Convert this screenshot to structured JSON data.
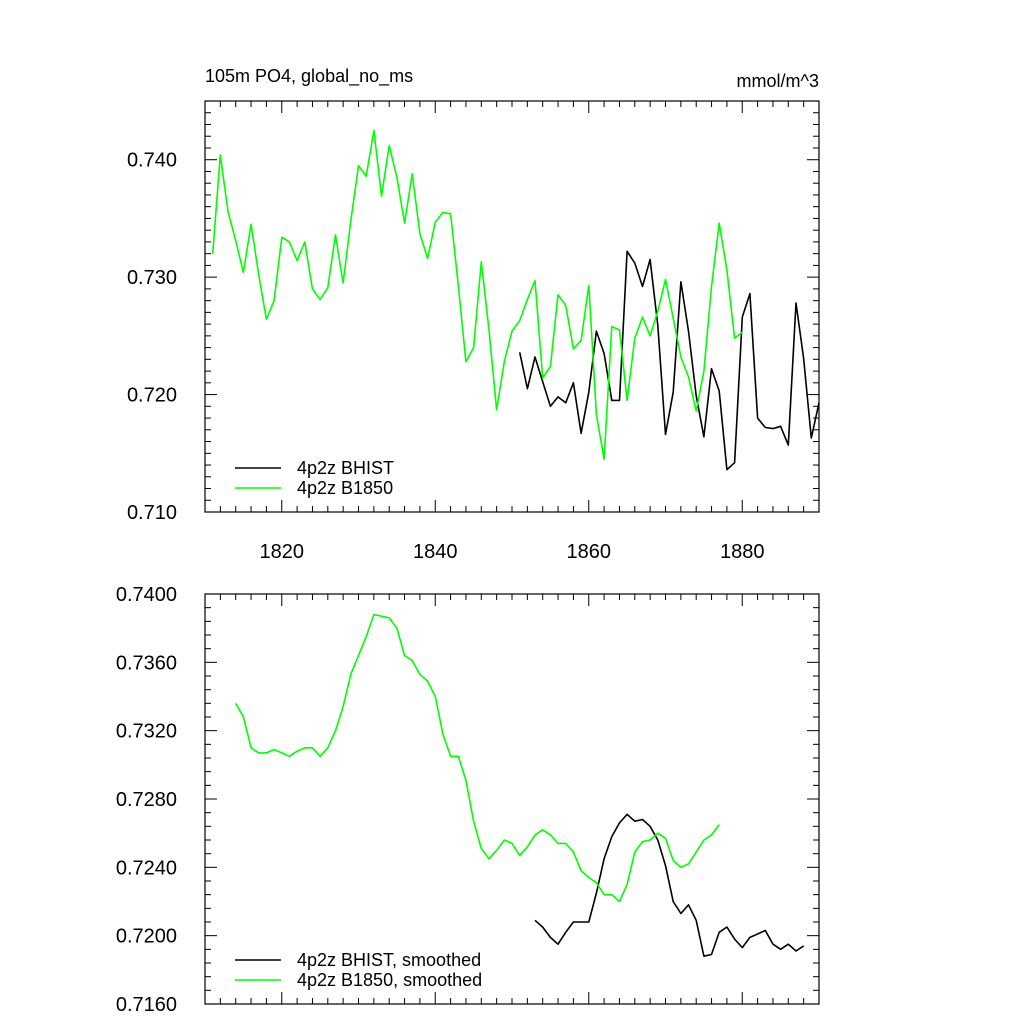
{
  "chart_data": [
    {
      "type": "line",
      "title": "105m PO4, global_no_ms",
      "units_label": "mmol/m^3",
      "xlim": [
        1810,
        1890
      ],
      "ylim": [
        0.71,
        0.745
      ],
      "x_ticks": [
        1820,
        1840,
        1860,
        1880
      ],
      "x_tick_labels": [
        "1820",
        "1840",
        "1860",
        "1880"
      ],
      "y_ticks": [
        0.71,
        0.72,
        0.73,
        0.74
      ],
      "y_tick_labels": [
        "0.710",
        "0.720",
        "0.730",
        "0.740"
      ],
      "legend_position": "bottom-left",
      "series": [
        {
          "name": "4p2z BHIST",
          "color": "#000000",
          "x": [
            1851,
            1852,
            1853,
            1854,
            1855,
            1856,
            1857,
            1858,
            1859,
            1860,
            1861,
            1862,
            1863,
            1864,
            1865,
            1866,
            1867,
            1868,
            1869,
            1870,
            1871,
            1872,
            1873,
            1874,
            1875,
            1876,
            1877,
            1878,
            1879,
            1880,
            1881,
            1882,
            1883,
            1884,
            1885,
            1886,
            1887,
            1888,
            1889,
            1890
          ],
          "values": [
            0.7236,
            0.7205,
            0.7232,
            0.7211,
            0.719,
            0.7198,
            0.7193,
            0.721,
            0.7167,
            0.7202,
            0.7254,
            0.7235,
            0.7195,
            0.7195,
            0.7322,
            0.7312,
            0.7292,
            0.7315,
            0.7259,
            0.7166,
            0.7202,
            0.7296,
            0.7254,
            0.7199,
            0.7164,
            0.7222,
            0.7203,
            0.7136,
            0.7142,
            0.7266,
            0.7286,
            0.718,
            0.7172,
            0.7171,
            0.7173,
            0.7157,
            0.7278,
            0.7231,
            0.7163,
            0.7193
          ]
        },
        {
          "name": "4p2z B1850",
          "color": "#00ff00",
          "x": [
            1811,
            1812,
            1813,
            1814,
            1815,
            1816,
            1817,
            1818,
            1819,
            1820,
            1821,
            1822,
            1823,
            1824,
            1825,
            1826,
            1827,
            1828,
            1829,
            1830,
            1831,
            1832,
            1833,
            1834,
            1835,
            1836,
            1837,
            1838,
            1839,
            1840,
            1841,
            1842,
            1843,
            1844,
            1845,
            1846,
            1847,
            1848,
            1849,
            1850,
            1851,
            1852,
            1853,
            1854,
            1855,
            1856,
            1857,
            1858,
            1859,
            1860,
            1861,
            1862,
            1863,
            1864,
            1865,
            1866,
            1867,
            1868,
            1869,
            1870,
            1871,
            1872,
            1873,
            1874,
            1875,
            1876,
            1877,
            1878,
            1879,
            1880
          ],
          "values": [
            0.732,
            0.7404,
            0.7356,
            0.7331,
            0.7304,
            0.7345,
            0.7302,
            0.7264,
            0.728,
            0.7334,
            0.733,
            0.7314,
            0.733,
            0.729,
            0.7281,
            0.7291,
            0.7336,
            0.7295,
            0.7348,
            0.7395,
            0.7386,
            0.7425,
            0.7369,
            0.7412,
            0.7385,
            0.7346,
            0.7388,
            0.7337,
            0.7316,
            0.7347,
            0.7355,
            0.7354,
            0.7293,
            0.7228,
            0.724,
            0.7313,
            0.7255,
            0.7187,
            0.7228,
            0.7254,
            0.7263,
            0.7281,
            0.7297,
            0.7214,
            0.7224,
            0.7285,
            0.7276,
            0.7239,
            0.7246,
            0.7293,
            0.7183,
            0.7145,
            0.7258,
            0.7255,
            0.7195,
            0.7248,
            0.7266,
            0.725,
            0.7271,
            0.7298,
            0.7265,
            0.7232,
            0.7215,
            0.7186,
            0.722,
            0.7292,
            0.7346,
            0.7306,
            0.7248,
            0.7253
          ]
        }
      ]
    },
    {
      "type": "line",
      "xlim": [
        1810,
        1890
      ],
      "ylim": [
        0.716,
        0.74
      ],
      "x_ticks": [
        1820,
        1840,
        1860,
        1880
      ],
      "y_ticks": [
        0.716,
        0.72,
        0.724,
        0.728,
        0.732,
        0.736,
        0.74
      ],
      "y_tick_labels": [
        "0.7160",
        "0.7200",
        "0.7240",
        "0.7280",
        "0.7320",
        "0.7360",
        "0.7400"
      ],
      "legend_position": "bottom-left",
      "series": [
        {
          "name": "4p2z BHIST, smoothed",
          "color": "#000000",
          "x": [
            1853,
            1854,
            1855,
            1856,
            1857,
            1858,
            1859,
            1860,
            1861,
            1862,
            1863,
            1864,
            1865,
            1866,
            1867,
            1868,
            1869,
            1870,
            1871,
            1872,
            1873,
            1874,
            1875,
            1876,
            1877,
            1878,
            1879,
            1880,
            1881,
            1882,
            1883,
            1884,
            1885,
            1886,
            1887,
            1888
          ],
          "values": [
            0.7209,
            0.7205,
            0.7199,
            0.7195,
            0.7202,
            0.7208,
            0.7208,
            0.7208,
            0.7225,
            0.7245,
            0.7258,
            0.7266,
            0.7271,
            0.7267,
            0.7268,
            0.7264,
            0.7256,
            0.7241,
            0.722,
            0.7213,
            0.7218,
            0.7209,
            0.7188,
            0.7189,
            0.7202,
            0.7205,
            0.7198,
            0.7193,
            0.7199,
            0.7201,
            0.7203,
            0.7195,
            0.7192,
            0.7195,
            0.7191,
            0.7194
          ]
        },
        {
          "name": "4p2z B1850, smoothed",
          "color": "#00ff00",
          "x": [
            1814,
            1815,
            1816,
            1817,
            1818,
            1819,
            1820,
            1821,
            1822,
            1823,
            1824,
            1825,
            1826,
            1827,
            1828,
            1829,
            1830,
            1831,
            1832,
            1833,
            1834,
            1835,
            1836,
            1837,
            1838,
            1839,
            1840,
            1841,
            1842,
            1843,
            1844,
            1845,
            1846,
            1847,
            1848,
            1849,
            1850,
            1851,
            1852,
            1853,
            1854,
            1855,
            1856,
            1857,
            1858,
            1859,
            1860,
            1861,
            1862,
            1863,
            1864,
            1865,
            1866,
            1867,
            1868,
            1869,
            1870,
            1871,
            1872,
            1873,
            1874,
            1875,
            1876,
            1877
          ],
          "values": [
            0.7336,
            0.7328,
            0.731,
            0.7307,
            0.7307,
            0.7309,
            0.7307,
            0.7305,
            0.7308,
            0.731,
            0.731,
            0.7305,
            0.731,
            0.732,
            0.7334,
            0.7353,
            0.7364,
            0.7375,
            0.7388,
            0.7387,
            0.7386,
            0.738,
            0.7364,
            0.7361,
            0.7353,
            0.7349,
            0.734,
            0.7318,
            0.7305,
            0.7305,
            0.7291,
            0.7267,
            0.7251,
            0.7245,
            0.725,
            0.7256,
            0.7254,
            0.7247,
            0.7252,
            0.7259,
            0.7262,
            0.7259,
            0.7254,
            0.7254,
            0.7249,
            0.7238,
            0.7234,
            0.7231,
            0.7224,
            0.7224,
            0.722,
            0.723,
            0.7249,
            0.7255,
            0.7256,
            0.726,
            0.7257,
            0.7244,
            0.724,
            0.7242,
            0.7249,
            0.7256,
            0.7259,
            0.7265
          ]
        }
      ]
    }
  ]
}
